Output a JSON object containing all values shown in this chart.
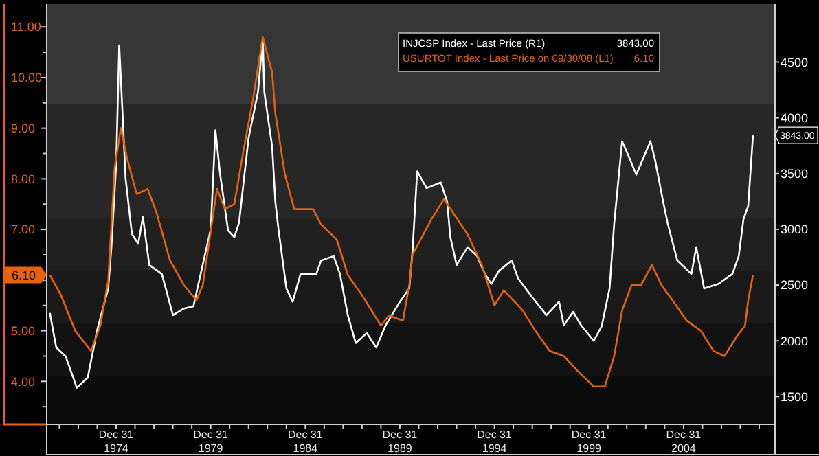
{
  "chart_data": {
    "type": "line",
    "legend": "top right",
    "xlim": [
      "1971-05",
      "2009-11"
    ],
    "xticks": [
      {
        "value": "1971-12-31",
        "label": null
      },
      {
        "value": "1972-12-31",
        "label": null
      },
      {
        "value": "1973-12-31",
        "label": null
      },
      {
        "value": "1974-12-31",
        "label": "Dec 31\n1974"
      },
      {
        "value": "1975-12-31",
        "label": null
      },
      {
        "value": "1976-12-31",
        "label": null
      },
      {
        "value": "1977-12-31",
        "label": null
      },
      {
        "value": "1978-12-31",
        "label": null
      },
      {
        "value": "1979-12-31",
        "label": "Dec 31\n1979"
      },
      {
        "value": "1980-12-31",
        "label": null
      },
      {
        "value": "1981-12-31",
        "label": null
      },
      {
        "value": "1982-12-31",
        "label": null
      },
      {
        "value": "1983-12-31",
        "label": null
      },
      {
        "value": "1984-12-31",
        "label": "Dec 31\n1984"
      },
      {
        "value": "1985-12-31",
        "label": null
      },
      {
        "value": "1986-12-31",
        "label": null
      },
      {
        "value": "1987-12-31",
        "label": null
      },
      {
        "value": "1988-12-31",
        "label": null
      },
      {
        "value": "1989-12-31",
        "label": "Dec 31\n1989"
      },
      {
        "value": "1990-12-31",
        "label": null
      },
      {
        "value": "1991-12-31",
        "label": null
      },
      {
        "value": "1992-12-31",
        "label": null
      },
      {
        "value": "1993-12-31",
        "label": null
      },
      {
        "value": "1994-12-31",
        "label": "Dec 31\n1994"
      },
      {
        "value": "1995-12-31",
        "label": null
      },
      {
        "value": "1996-12-31",
        "label": null
      },
      {
        "value": "1997-12-31",
        "label": null
      },
      {
        "value": "1998-12-31",
        "label": null
      },
      {
        "value": "1999-12-31",
        "label": "Dec 31\n1999"
      },
      {
        "value": "2000-12-31",
        "label": null
      },
      {
        "value": "2001-12-31",
        "label": null
      },
      {
        "value": "2002-12-31",
        "label": null
      },
      {
        "value": "2003-12-31",
        "label": null
      },
      {
        "value": "2004-12-31",
        "label": "Dec 31\n2004"
      },
      {
        "value": "2005-12-31",
        "label": null
      },
      {
        "value": "2006-12-31",
        "label": null
      },
      {
        "value": "2007-12-31",
        "label": null
      },
      {
        "value": "2008-12-31",
        "label": null
      }
    ],
    "ylim": [
      3.15,
      11.45
    ],
    "yticks": [
      {
        "value": 3.5,
        "label": null
      },
      {
        "value": 4,
        "label": "4.00"
      },
      {
        "value": 4.5,
        "label": null
      },
      {
        "value": 5,
        "label": "5.00"
      },
      {
        "value": 5.5,
        "label": null
      },
      {
        "value": 6,
        "label": null
      },
      {
        "value": 6.5,
        "label": null
      },
      {
        "value": 7,
        "label": "7.00"
      },
      {
        "value": 7.5,
        "label": null
      },
      {
        "value": 8,
        "label": "8.00"
      },
      {
        "value": 8.5,
        "label": null
      },
      {
        "value": 9,
        "label": "9.00"
      },
      {
        "value": 9.5,
        "label": null
      },
      {
        "value": 10,
        "label": "10.00"
      },
      {
        "value": 10.5,
        "label": null
      },
      {
        "value": 11,
        "label": "11.00"
      }
    ],
    "y2lim": [
      1250,
      5020
    ],
    "y2ticks": [
      1500,
      2000,
      2500,
      3000,
      3500,
      4000,
      4500
    ],
    "bands": [
      {
        "axis": "y",
        "from": 9.46,
        "to": 11.45,
        "color": "#363636"
      },
      {
        "axis": "y",
        "from": 7.23,
        "to": 9.46,
        "color": "#272727"
      },
      {
        "axis": "y",
        "from": 6.18,
        "to": 7.23,
        "color": "#202020"
      },
      {
        "axis": "y",
        "from": 5.15,
        "to": 6.18,
        "color": "#1a1a1a"
      },
      {
        "axis": "y",
        "from": 4.09,
        "to": 5.15,
        "color": "#121212"
      },
      {
        "axis": "y",
        "from": 3.15,
        "to": 4.09,
        "color": "#0b0b0b"
      }
    ],
    "annotations": [
      "6.10",
      "3843.00"
    ],
    "series": [
      {
        "name": "INJCSP  Index - Last Price (R1)",
        "color": "#ffffff",
        "axis": "y2",
        "x": [
          "1971-07",
          "1971-11",
          "1972-05",
          "1972-12",
          "1973-07",
          "1974-01",
          "1974-08",
          "1974-10",
          "1975-01",
          "1975-03",
          "1975-05",
          "1975-07",
          "1975-11",
          "1976-03",
          "1976-06",
          "1976-10",
          "1977-06",
          "1978-01",
          "1978-08",
          "1979-02",
          "1979-09",
          "1980-01",
          "1980-04",
          "1980-07",
          "1980-12",
          "1981-04",
          "1981-07",
          "1982-01",
          "1982-07",
          "1982-10",
          "1982-11",
          "1983-04",
          "1983-06",
          "1983-08",
          "1984-01",
          "1984-05",
          "1984-10",
          "1985-08",
          "1985-11",
          "1986-07",
          "1986-11",
          "1987-04",
          "1987-09",
          "1988-04",
          "1988-10",
          "1989-04",
          "1990-01",
          "1990-07",
          "1990-09",
          "1990-12",
          "1991-06",
          "1992-03",
          "1992-07",
          "1992-09",
          "1993-01",
          "1993-08",
          "1994-02",
          "1994-07",
          "1994-11",
          "1995-04",
          "1995-12",
          "1996-04",
          "1997-01",
          "1997-10",
          "1998-06",
          "1998-09",
          "1999-03",
          "1999-08",
          "2000-04",
          "2000-09",
          "2001-02",
          "2001-05",
          "2001-10",
          "2002-02",
          "2002-07",
          "2003-04",
          "2003-07",
          "2003-12",
          "2004-03",
          "2004-09",
          "2005-06",
          "2005-09",
          "2006-02",
          "2006-11",
          "2007-08",
          "2007-12",
          "2008-03",
          "2008-06",
          "2008-09"
        ],
        "values": [
          2250,
          1940,
          1860,
          1580,
          1670,
          2100,
          2470,
          2840,
          3580,
          4650,
          4070,
          3460,
          2960,
          2870,
          3110,
          2680,
          2600,
          2230,
          2290,
          2310,
          2750,
          3000,
          3890,
          3490,
          2990,
          2930,
          3060,
          3820,
          4230,
          4710,
          4230,
          3740,
          3250,
          3000,
          2470,
          2350,
          2600,
          2600,
          2720,
          2760,
          2600,
          2230,
          1980,
          2070,
          1940,
          2140,
          2350,
          2470,
          2800,
          3520,
          3370,
          3420,
          3250,
          2930,
          2680,
          2840,
          2760,
          2600,
          2510,
          2630,
          2720,
          2560,
          2390,
          2230,
          2350,
          2140,
          2260,
          2140,
          2000,
          2130,
          2470,
          3050,
          3790,
          3660,
          3490,
          3790,
          3620,
          3250,
          3050,
          2720,
          2600,
          2840,
          2470,
          2510,
          2600,
          2760,
          3090,
          3210,
          3843
        ]
      },
      {
        "name": "USURTOT Index - Last Price on 09/30/08 (L1)",
        "color": "#e8620a",
        "x": [
          "1971-07",
          "1972-02",
          "1972-11",
          "1973-09",
          "1974-03",
          "1974-08",
          "1974-12",
          "1975-04",
          "1975-08",
          "1976-02",
          "1976-09",
          "1977-03",
          "1977-11",
          "1978-08",
          "1979-04",
          "1979-08",
          "1980-05",
          "1980-10",
          "1981-04",
          "1981-10",
          "1982-04",
          "1982-10",
          "1983-04",
          "1983-06",
          "1983-12",
          "1984-06",
          "1985-06",
          "1985-11",
          "1986-09",
          "1987-04",
          "1988-01",
          "1989-01",
          "1989-06",
          "1990-03",
          "1990-07",
          "1990-09",
          "1991-09",
          "1992-01",
          "1992-05",
          "1993-08",
          "1994-05",
          "1995-01",
          "1995-07",
          "1996-07",
          "1997-03",
          "1997-12",
          "1998-09",
          "1999-06",
          "2000-04",
          "2000-11",
          "2001-05",
          "2001-10",
          "2002-04",
          "2002-10",
          "2003-05",
          "2003-11",
          "2004-06",
          "2005-03",
          "2005-12",
          "2006-08",
          "2007-03",
          "2007-11",
          "2008-04",
          "2008-06",
          "2008-09"
        ],
        "values": [
          6.1,
          5.7,
          5.0,
          4.6,
          5.1,
          6.0,
          8.2,
          9.0,
          8.4,
          7.7,
          7.8,
          7.3,
          6.4,
          5.9,
          5.6,
          5.9,
          7.8,
          7.4,
          7.5,
          8.6,
          9.6,
          10.8,
          10.1,
          9.3,
          8.1,
          7.4,
          7.4,
          7.1,
          6.8,
          6.1,
          5.7,
          5.1,
          5.3,
          5.2,
          5.9,
          6.5,
          7.2,
          7.4,
          7.6,
          6.9,
          6.3,
          5.5,
          5.8,
          5.4,
          5.0,
          4.6,
          4.5,
          4.2,
          3.9,
          3.9,
          4.5,
          5.4,
          5.9,
          5.9,
          6.3,
          5.9,
          5.6,
          5.2,
          5.0,
          4.6,
          4.5,
          4.9,
          5.1,
          5.6,
          6.1
        ]
      }
    ]
  }
}
